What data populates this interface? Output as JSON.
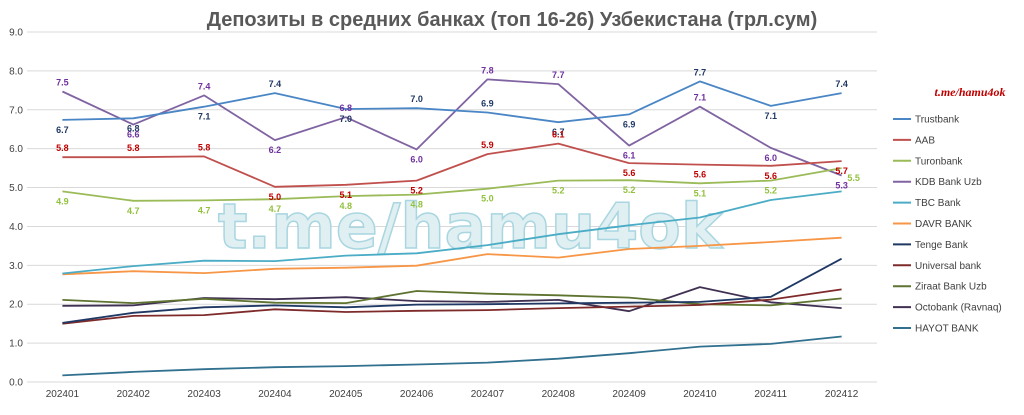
{
  "chart_data": {
    "type": "line",
    "title": "Депозиты в средних банках (топ 16-26) Узбекистана (трл.сум)",
    "xlabel": "",
    "ylabel": "",
    "ylim": [
      0,
      9
    ],
    "yticks": [
      "0.0",
      "1.0",
      "2.0",
      "3.0",
      "4.0",
      "5.0",
      "6.0",
      "7.0",
      "8.0",
      "9.0"
    ],
    "grid": true,
    "legend_position": "right",
    "x": [
      "202401",
      "202402",
      "202403",
      "202404",
      "202405",
      "202406",
      "202407",
      "202408",
      "202409",
      "202410",
      "202411",
      "202412"
    ],
    "series": [
      {
        "name": "Trustbank",
        "color": "#4a86c5",
        "values": [
          6.74,
          6.78,
          7.08,
          7.43,
          7.02,
          7.04,
          6.93,
          6.68,
          6.88,
          7.73,
          7.1,
          7.43
        ],
        "labels": [
          "6.7",
          "6.8",
          "7.1",
          "7.4",
          "7.0",
          "7.0",
          "6.9",
          "6.7",
          "6.9",
          "7.7",
          "7.1",
          "7.4"
        ],
        "label_color": "#1f3864"
      },
      {
        "name": "AAB",
        "color": "#c0504d",
        "values": [
          5.78,
          5.78,
          5.8,
          5.02,
          5.07,
          5.18,
          5.86,
          6.13,
          5.63,
          5.59,
          5.56,
          5.68
        ],
        "labels": [
          "5.8",
          "5.8",
          "5.8",
          "5.0",
          "5.1",
          "5.2",
          "5.9",
          "6.1",
          "5.6",
          "5.6",
          "5.6",
          "5.7"
        ],
        "label_color": "#c00000"
      },
      {
        "name": "Turonbank",
        "color": "#9bbb59",
        "values": [
          4.9,
          4.66,
          4.67,
          4.7,
          4.78,
          4.82,
          4.97,
          5.18,
          5.19,
          5.11,
          5.18,
          5.5
        ],
        "labels": [
          "4.9",
          "4.7",
          "4.7",
          "4.7",
          "4.8",
          "4.8",
          "5.0",
          "5.2",
          "5.2",
          "5.1",
          "5.2",
          "5.5"
        ],
        "label_color": "#92c13e"
      },
      {
        "name": "KDB Bank Uzb",
        "color": "#8064a2",
        "values": [
          7.47,
          6.62,
          7.37,
          6.22,
          6.81,
          5.98,
          7.78,
          7.66,
          6.08,
          7.08,
          6.02,
          5.31
        ],
        "labels": [
          "7.5",
          "6.6",
          "7.4",
          "6.2",
          "6.8",
          "6.0",
          "7.8",
          "7.7",
          "6.1",
          "7.1",
          "6.0",
          "5.3"
        ],
        "label_color": "#7030a0"
      },
      {
        "name": "TBC Bank",
        "color": "#4bacc6",
        "values": [
          2.79,
          2.98,
          3.12,
          3.11,
          3.25,
          3.31,
          3.52,
          3.8,
          4.03,
          4.23,
          4.68,
          4.9
        ],
        "labels": [],
        "label_color": "#4bacc6"
      },
      {
        "name": "DAVR BANK",
        "color": "#f79646",
        "values": [
          2.77,
          2.85,
          2.8,
          2.91,
          2.94,
          2.99,
          3.29,
          3.2,
          3.42,
          3.5,
          3.6,
          3.71
        ],
        "labels": [],
        "label_color": "#f79646"
      },
      {
        "name": "Tenge Bank",
        "color": "#1f3864",
        "values": [
          1.52,
          1.78,
          1.92,
          1.97,
          1.92,
          1.99,
          2.0,
          2.02,
          2.04,
          2.06,
          2.19,
          3.17
        ],
        "labels": [],
        "label_color": "#1f3864"
      },
      {
        "name": "Universal bank",
        "color": "#7f2a2a",
        "values": [
          1.5,
          1.7,
          1.72,
          1.87,
          1.8,
          1.83,
          1.85,
          1.9,
          1.94,
          1.98,
          2.12,
          2.38
        ],
        "labels": [],
        "label_color": "#7f2a2a"
      },
      {
        "name": "Ziraat Bank Uzb",
        "color": "#5e7330",
        "values": [
          2.11,
          2.03,
          2.14,
          2.04,
          2.03,
          2.34,
          2.27,
          2.23,
          2.17,
          2.0,
          1.97,
          2.15
        ],
        "labels": [],
        "label_color": "#5e7330"
      },
      {
        "name": "Octobank (Ravnaq)",
        "color": "#403152",
        "values": [
          1.96,
          1.97,
          2.16,
          2.13,
          2.18,
          2.08,
          2.06,
          2.11,
          1.82,
          2.44,
          2.05,
          1.9
        ],
        "labels": [],
        "label_color": "#403152"
      },
      {
        "name": "HAYOT BANK",
        "color": "#31708f",
        "values": [
          0.17,
          0.26,
          0.33,
          0.38,
          0.41,
          0.45,
          0.5,
          0.6,
          0.74,
          0.91,
          0.98,
          1.17
        ],
        "labels": [],
        "label_color": "#31708f"
      }
    ],
    "watermark": "t.me/hamu4ok",
    "watermark_small": "t.me/hamu4ok"
  }
}
